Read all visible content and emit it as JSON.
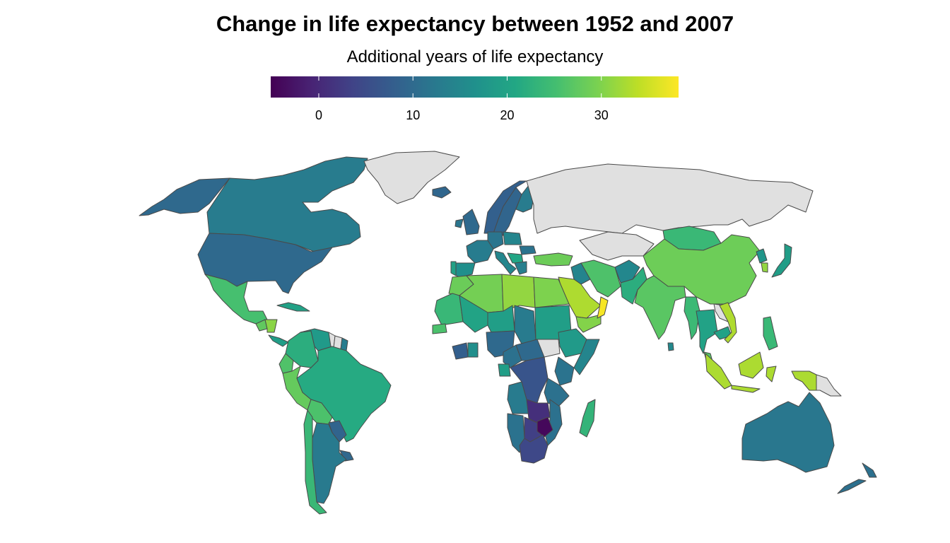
{
  "title": "Change in life expectancy between 1952 and 2007",
  "legend": {
    "title": "Additional years of life expectancy",
    "min": -5.1,
    "max": 38.2,
    "ticks": [
      0,
      10,
      20,
      30
    ],
    "tick_labels": [
      "0",
      "10",
      "20",
      "30"
    ],
    "palette": "viridis",
    "missing_color": "#e0e0e0",
    "border_color": "#4a4a4a"
  },
  "chart_data": {
    "type": "choropleth",
    "title": "Change in life expectancy between 1952 and 2007",
    "legend_title": "Additional years of life expectancy",
    "scale_range": [
      -5.1,
      38.2
    ],
    "countries": [
      {
        "name": "Canada",
        "value": 12.9
      },
      {
        "name": "United States",
        "value": 9.8
      },
      {
        "name": "Alaska (United States)",
        "value": 9.8
      },
      {
        "name": "Greenland",
        "value": null
      },
      {
        "name": "Mexico",
        "value": 25.4
      },
      {
        "name": "Cuba",
        "value": 19.8
      },
      {
        "name": "Guatemala",
        "value": 27.6
      },
      {
        "name": "Nicaragua",
        "value": 30.6
      },
      {
        "name": "Panama",
        "value": 19.0
      },
      {
        "name": "Colombia",
        "value": 22.1
      },
      {
        "name": "Venezuela",
        "value": 18.4
      },
      {
        "name": "Guyana",
        "value": null
      },
      {
        "name": "Suriname",
        "value": null
      },
      {
        "name": "French Guiana",
        "value": 13.0
      },
      {
        "name": "Ecuador",
        "value": 26.2
      },
      {
        "name": "Peru",
        "value": 27.9
      },
      {
        "name": "Brazil",
        "value": 21.4
      },
      {
        "name": "Bolivia",
        "value": 25.9
      },
      {
        "name": "Paraguay",
        "value": 8.9
      },
      {
        "name": "Uruguay",
        "value": 9.5
      },
      {
        "name": "Argentina",
        "value": 12.6
      },
      {
        "name": "Chile",
        "value": 23.9
      },
      {
        "name": "Iceland",
        "value": 9.3
      },
      {
        "name": "Norway",
        "value": 8.2
      },
      {
        "name": "Sweden",
        "value": 9.0
      },
      {
        "name": "Finland",
        "value": 12.9
      },
      {
        "name": "United Kingdom",
        "value": 9.8
      },
      {
        "name": "Ireland",
        "value": 11.9
      },
      {
        "name": "France",
        "value": 13.0
      },
      {
        "name": "Spain",
        "value": 16.4
      },
      {
        "name": "Portugal",
        "value": 19.8
      },
      {
        "name": "Germany",
        "value": 11.7
      },
      {
        "name": "Poland",
        "value": 14.5
      },
      {
        "name": "Italy",
        "value": 14.7
      },
      {
        "name": "Romania",
        "value": 11.4
      },
      {
        "name": "Balkans",
        "value": 20.6
      },
      {
        "name": "Greece",
        "value": 13.4
      },
      {
        "name": "Turkey",
        "value": 28.5
      },
      {
        "name": "Russia",
        "value": null
      },
      {
        "name": "Kazakhstan",
        "value": null
      },
      {
        "name": "Mongolia",
        "value": 24.0
      },
      {
        "name": "China",
        "value": 28.6
      },
      {
        "name": "North Korea",
        "value": 17.6
      },
      {
        "name": "South Korea",
        "value": 31.2
      },
      {
        "name": "Japan",
        "value": 19.0
      },
      {
        "name": "Iran",
        "value": 26.0
      },
      {
        "name": "Iraq",
        "value": 14.4
      },
      {
        "name": "Afghanistan",
        "value": 15.0
      },
      {
        "name": "Pakistan",
        "value": 22.1
      },
      {
        "name": "India",
        "value": 27.0
      },
      {
        "name": "Sri Lanka",
        "value": 15.2
      },
      {
        "name": "Saudi Arabia",
        "value": 32.9
      },
      {
        "name": "Yemen",
        "value": 30.2
      },
      {
        "name": "Oman",
        "value": 37.7
      },
      {
        "name": "Morocco",
        "value": 28.4
      },
      {
        "name": "Algeria",
        "value": 29.1
      },
      {
        "name": "Libya",
        "value": 31.2
      },
      {
        "name": "Egypt",
        "value": 29.8
      },
      {
        "name": "Mauritania",
        "value": 23.8
      },
      {
        "name": "Mali",
        "value": 20.2
      },
      {
        "name": "Niger",
        "value": 19.1
      },
      {
        "name": "Chad",
        "value": 12.7
      },
      {
        "name": "Sudan",
        "value": 19.2
      },
      {
        "name": "South Sudan",
        "value": null
      },
      {
        "name": "Ethiopia",
        "value": 18.4
      },
      {
        "name": "Somalia",
        "value": 14.6
      },
      {
        "name": "Senegal",
        "value": 25.8
      },
      {
        "name": "Ivory Coast",
        "value": 8.1
      },
      {
        "name": "Ghana",
        "value": 16.3
      },
      {
        "name": "Nigeria",
        "value": 9.8
      },
      {
        "name": "Cameroon",
        "value": 11.0
      },
      {
        "name": "Central African Republic",
        "value": 9.7
      },
      {
        "name": "Gabon",
        "value": 19.1
      },
      {
        "name": "DR Congo",
        "value": 6.3
      },
      {
        "name": "Kenya",
        "value": 11.4
      },
      {
        "name": "Tanzania",
        "value": 11.0
      },
      {
        "name": "Angola",
        "value": 12.7
      },
      {
        "name": "Zambia",
        "value": 0.8
      },
      {
        "name": "Mozambique",
        "value": 11.1
      },
      {
        "name": "Namibia",
        "value": 11.3
      },
      {
        "name": "Botswana",
        "value": 3.1
      },
      {
        "name": "Zimbabwe",
        "value": -4.2
      },
      {
        "name": "South Africa",
        "value": 4.3
      },
      {
        "name": "Madagascar",
        "value": 23.2
      },
      {
        "name": "Myanmar",
        "value": 24.2
      },
      {
        "name": "Laos",
        "value": null
      },
      {
        "name": "Thailand",
        "value": 20.0
      },
      {
        "name": "Cambodia",
        "value": 20.0
      },
      {
        "name": "Vietnam",
        "value": 33.0
      },
      {
        "name": "Malaysia",
        "value": 26.6
      },
      {
        "name": "Philippines",
        "value": 24.0
      },
      {
        "name": "Indonesia",
        "value": 32.8
      },
      {
        "name": "Papua (Indonesia)",
        "value": 32.8
      },
      {
        "name": "Papua New Guinea",
        "value": null
      },
      {
        "name": "Australia",
        "value": 12.1
      },
      {
        "name": "New Zealand",
        "value": 10.9
      }
    ]
  }
}
